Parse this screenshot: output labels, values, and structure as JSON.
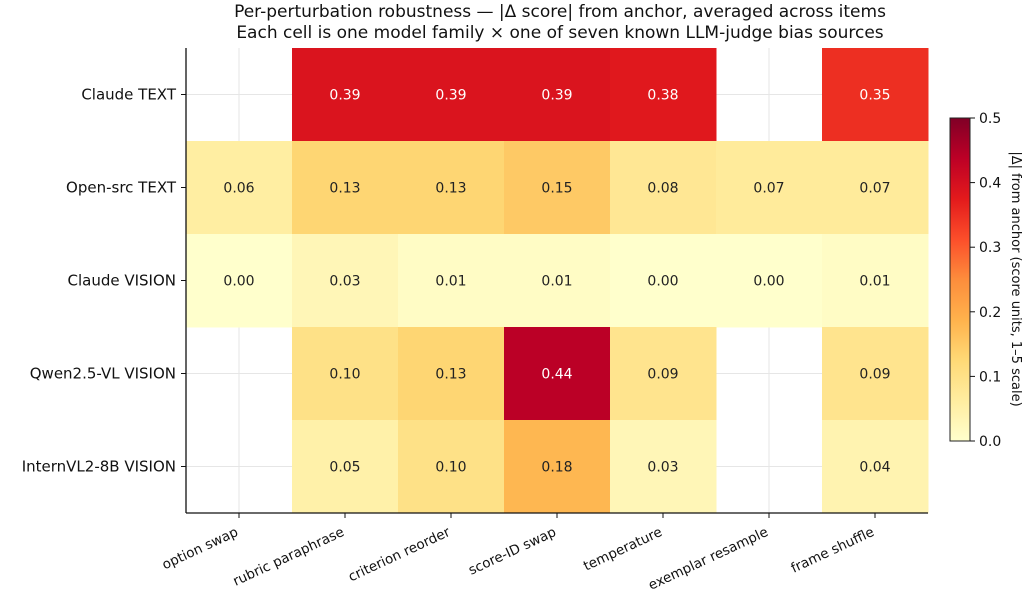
{
  "chart_data": {
    "type": "heatmap",
    "title": "Per-perturbation robustness — |Δ score| from anchor, averaged across items",
    "subtitle": "Each cell is one model family × one of seven known LLM-judge bias sources",
    "rows": [
      "Claude TEXT",
      "Open-src TEXT",
      "Claude VISION",
      "Qwen2.5-VL VISION",
      "InternVL2-8B VISION"
    ],
    "columns": [
      "option swap",
      "rubric paraphrase",
      "criterion reorder",
      "score-ID swap",
      "temperature",
      "exemplar resample",
      "frame shuffle"
    ],
    "values": [
      [
        null,
        0.39,
        0.39,
        0.39,
        0.38,
        null,
        0.35
      ],
      [
        0.06,
        0.13,
        0.13,
        0.15,
        0.08,
        0.07,
        0.07
      ],
      [
        0.0,
        0.03,
        0.01,
        0.01,
        0.0,
        0.0,
        0.01
      ],
      [
        null,
        0.1,
        0.13,
        0.44,
        0.09,
        null,
        0.09
      ],
      [
        null,
        0.05,
        0.1,
        0.18,
        0.03,
        null,
        0.04
      ]
    ],
    "value_labels": [
      [
        "",
        "0.39",
        "0.39",
        "0.39",
        "0.38",
        "",
        "0.35"
      ],
      [
        "0.06",
        "0.13",
        "0.13",
        "0.15",
        "0.08",
        "0.07",
        "0.07"
      ],
      [
        "0.00",
        "0.03",
        "0.01",
        "0.01",
        "0.00",
        "0.00",
        "0.01"
      ],
      [
        "",
        "0.10",
        "0.13",
        "0.44",
        "0.09",
        "",
        "0.09"
      ],
      [
        "",
        "0.05",
        "0.10",
        "0.18",
        "0.03",
        "",
        "0.04"
      ]
    ],
    "colorbar": {
      "label": "|Δ| from anchor (score units, 1–5 scale)",
      "range": [
        0,
        0.5
      ],
      "ticks": [
        "0.0",
        "0.1",
        "0.2",
        "0.3",
        "0.4",
        "0.5"
      ],
      "colormap": "YlOrRd"
    },
    "grid": true
  }
}
